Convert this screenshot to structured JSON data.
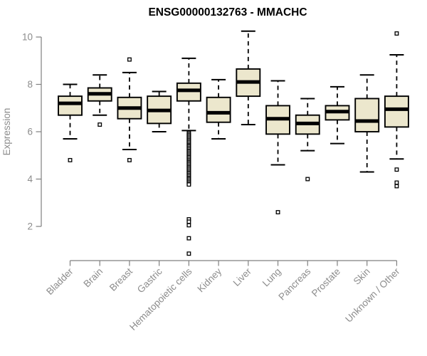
{
  "window": {
    "background": "#ffffff"
  },
  "chart_data": {
    "type": "boxplot",
    "title": "ENSG00000132763 - MMACHC",
    "xlabel": "",
    "ylabel": "Expression",
    "yticks": [
      2,
      4,
      6,
      8,
      10
    ],
    "ylim": [
      0.6,
      10.6
    ],
    "grid": false,
    "legend": "none",
    "orientation": "vertical",
    "categories": [
      "Bladder",
      "Brain",
      "Breast",
      "Gastric",
      "Hematopoietic cells",
      "Kidney",
      "Liver",
      "Lung",
      "Pancreas",
      "Prostate",
      "Skin",
      "Unknown / Other"
    ],
    "boxes": [
      {
        "category": "Bladder",
        "whisker_low": 5.7,
        "q1": 6.7,
        "median": 7.2,
        "q3": 7.5,
        "whisker_high": 8.0,
        "outliers": [
          4.8
        ]
      },
      {
        "category": "Brain",
        "whisker_low": 6.7,
        "q1": 7.3,
        "median": 7.6,
        "q3": 7.85,
        "whisker_high": 8.4,
        "outliers": [
          6.3
        ]
      },
      {
        "category": "Breast",
        "whisker_low": 5.25,
        "q1": 6.55,
        "median": 7.0,
        "q3": 7.45,
        "whisker_high": 8.5,
        "outliers": [
          9.05,
          4.8
        ]
      },
      {
        "category": "Gastric",
        "whisker_low": 6.0,
        "q1": 6.35,
        "median": 6.9,
        "q3": 7.5,
        "whisker_high": 7.7,
        "outliers": []
      },
      {
        "category": "Hematopoietic cells",
        "whisker_low": 6.05,
        "q1": 7.3,
        "median": 7.75,
        "q3": 8.05,
        "whisker_high": 9.1,
        "outliers": [
          5.95,
          5.89,
          5.84,
          5.78,
          5.72,
          5.66,
          5.61,
          5.55,
          5.49,
          5.43,
          5.38,
          5.32,
          5.26,
          5.2,
          5.15,
          5.09,
          5.03,
          4.97,
          4.92,
          4.86,
          4.8,
          4.74,
          4.69,
          4.63,
          4.57,
          4.51,
          4.46,
          4.4,
          4.34,
          4.28,
          4.23,
          4.17,
          4.11,
          4.05,
          4.0,
          3.94,
          3.88,
          3.82,
          3.77,
          2.3,
          2.2,
          2.05,
          1.5,
          0.85
        ]
      },
      {
        "category": "Kidney",
        "whisker_low": 5.7,
        "q1": 6.4,
        "median": 6.8,
        "q3": 7.45,
        "whisker_high": 8.2,
        "outliers": []
      },
      {
        "category": "Liver",
        "whisker_low": 6.3,
        "q1": 7.5,
        "median": 8.1,
        "q3": 8.65,
        "whisker_high": 10.25,
        "outliers": []
      },
      {
        "category": "Lung",
        "whisker_low": 4.6,
        "q1": 5.9,
        "median": 6.55,
        "q3": 7.1,
        "whisker_high": 8.15,
        "outliers": [
          2.6
        ]
      },
      {
        "category": "Pancreas",
        "whisker_low": 5.2,
        "q1": 5.9,
        "median": 6.35,
        "q3": 6.7,
        "whisker_high": 7.4,
        "outliers": [
          4.0
        ]
      },
      {
        "category": "Prostate",
        "whisker_low": 5.5,
        "q1": 6.5,
        "median": 6.85,
        "q3": 7.1,
        "whisker_high": 7.9,
        "outliers": []
      },
      {
        "category": "Skin",
        "whisker_low": 4.3,
        "q1": 6.0,
        "median": 6.45,
        "q3": 7.4,
        "whisker_high": 8.4,
        "outliers": []
      },
      {
        "category": "Unknown / Other",
        "whisker_low": 4.85,
        "q1": 6.2,
        "median": 6.95,
        "q3": 7.5,
        "whisker_high": 9.25,
        "outliers": [
          10.15,
          4.4,
          3.85,
          3.7
        ]
      }
    ],
    "colors": {
      "box_fill": "#ece7cd",
      "box_stroke": "#000000",
      "median": "#000000",
      "whisker": "#000000",
      "outlier_stroke": "#000000",
      "outlier_fill": "#ffffff",
      "axis_line": "#808080",
      "axis_text": "#8c8c8c",
      "title_text": "#000000"
    }
  }
}
